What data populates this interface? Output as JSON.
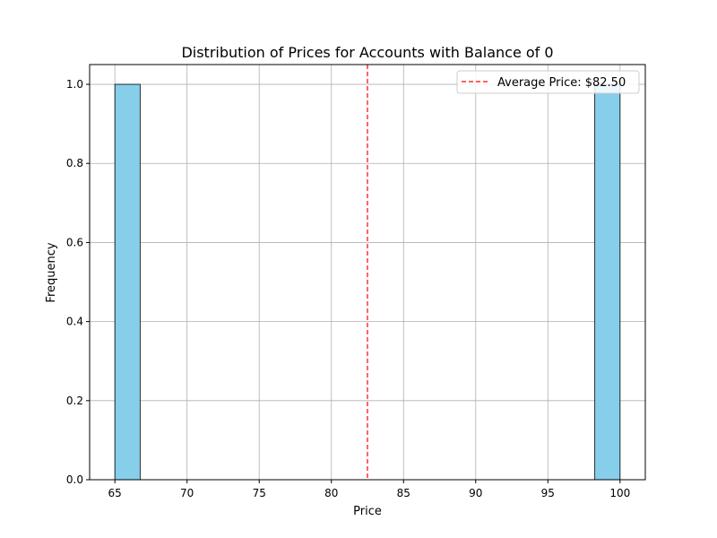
{
  "chart_data": {
    "type": "bar",
    "title": "Distribution of Prices for Accounts with Balance of 0",
    "xlabel": "Price",
    "ylabel": "Frequency",
    "xlim": [
      63.25,
      101.75
    ],
    "ylim": [
      0,
      1.05
    ],
    "x_ticks": [
      65,
      70,
      75,
      80,
      85,
      90,
      95,
      100
    ],
    "y_ticks": [
      0.0,
      0.2,
      0.4,
      0.6,
      0.8,
      1.0
    ],
    "x_tick_labels": [
      "65",
      "70",
      "75",
      "80",
      "85",
      "90",
      "95",
      "100"
    ],
    "y_tick_labels": [
      "0.0",
      "0.2",
      "0.4",
      "0.6",
      "0.8",
      "1.0"
    ],
    "bins": [
      {
        "start": 65.0,
        "end": 66.75,
        "count": 1
      },
      {
        "start": 98.25,
        "end": 100.0,
        "count": 1
      }
    ],
    "average_line": {
      "value": 82.5,
      "label": "Average Price: $82.50",
      "color": "#ff0000"
    },
    "bar_color": "#87ceeb",
    "grid": true,
    "legend": {
      "position": "top-right"
    }
  }
}
